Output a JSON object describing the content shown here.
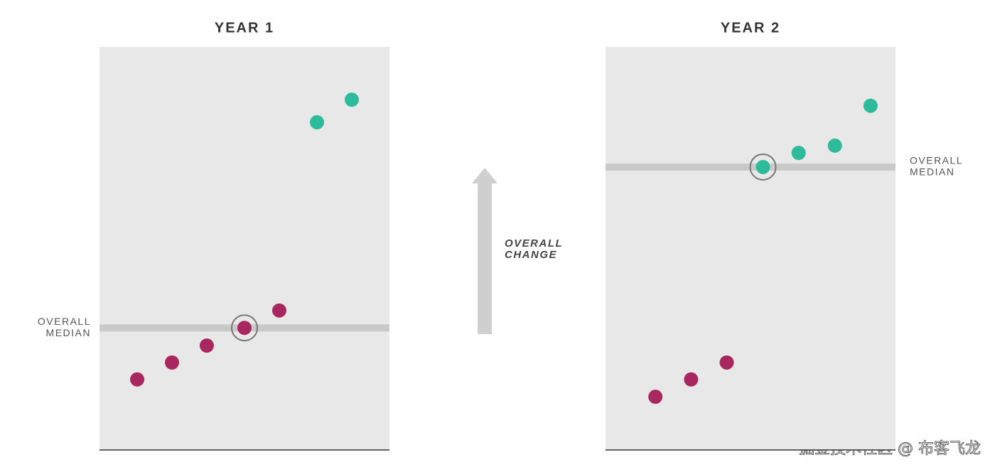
{
  "chart_data": [
    {
      "type": "scatter",
      "title": "YEAR 1",
      "xlim": [
        0,
        100
      ],
      "ylim": [
        0,
        100
      ],
      "series": [
        {
          "color": "#a8275f",
          "x": [
            13,
            25,
            37,
            50,
            62
          ],
          "values": [
            17.5,
            21.7,
            25.9,
            30.3,
            34.6
          ]
        },
        {
          "color": "#2dbb9c",
          "x": [
            75,
            87
          ],
          "values": [
            81.3,
            86.9
          ]
        }
      ],
      "median": {
        "value": 30.3,
        "label": [
          "OVERALL",
          "MEDIAN"
        ],
        "side": "left"
      },
      "highlight": [
        0,
        3
      ]
    },
    {
      "type": "scatter",
      "title": "YEAR 2",
      "xlim": [
        0,
        100
      ],
      "ylim": [
        0,
        100
      ],
      "series": [
        {
          "color": "#a8275f",
          "x": [
            17.2,
            29.5,
            41.8
          ],
          "values": [
            13.2,
            17.5,
            21.7
          ]
        },
        {
          "color": "#2dbb9c",
          "x": [
            54.3,
            66.6,
            79.1,
            91.4
          ],
          "values": [
            70.2,
            73.7,
            75.5,
            85.4
          ]
        }
      ],
      "median": {
        "value": 70.2,
        "label": [
          "OVERALL",
          "MEDIAN"
        ],
        "side": "right"
      },
      "highlight": [
        1,
        0
      ]
    }
  ],
  "annotation": [
    "OVERALL",
    "CHANGE"
  ],
  "watermark": "掘金技术社区 @ 布客飞龙"
}
